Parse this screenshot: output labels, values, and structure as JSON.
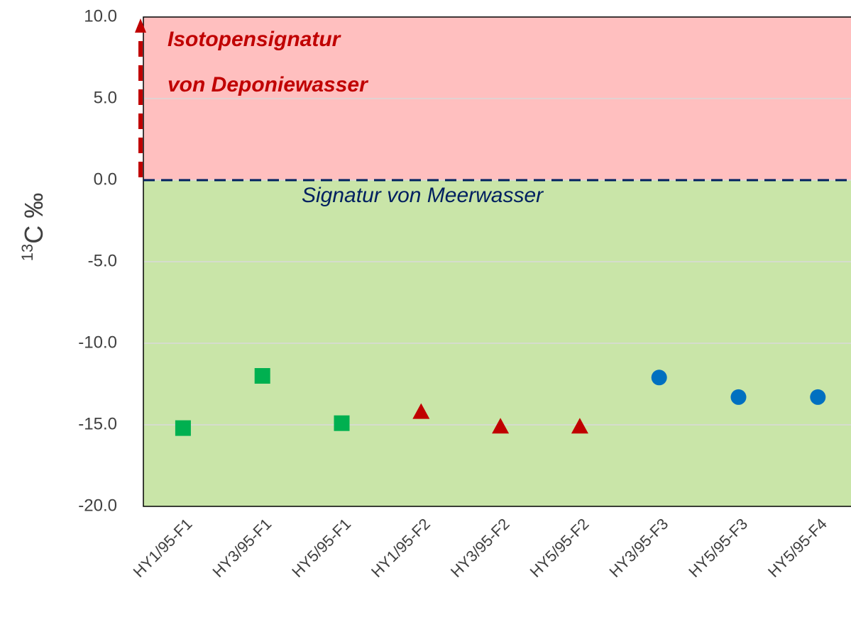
{
  "chart_data": {
    "type": "scatter",
    "categories": [
      "HY1/95-F1",
      "HY3/95-F1",
      "HY5/95-F1",
      "HY1/95-F2",
      "HY3/95-F2",
      "HY5/95-F2",
      "HY3/95-F3",
      "HY5/95-F3",
      "HY5/95-F4"
    ],
    "series": [
      {
        "color": "#00b050",
        "marker": "square",
        "values": [
          -15.2,
          -12.0,
          -14.9,
          null,
          null,
          null,
          null,
          null,
          null
        ]
      },
      {
        "color": "#c00000",
        "marker": "triangle",
        "values": [
          null,
          null,
          null,
          -14.2,
          -15.1,
          -15.1,
          null,
          null,
          null
        ]
      },
      {
        "color": "#0070c0",
        "marker": "circle",
        "values": [
          null,
          null,
          null,
          null,
          null,
          null,
          -12.1,
          -13.3,
          -13.3
        ]
      }
    ],
    "ylim": [
      -20,
      10
    ],
    "yticks": [
      {
        "value": -20,
        "label": "-20.0"
      },
      {
        "value": -15,
        "label": "-15.0"
      },
      {
        "value": -10,
        "label": "-10.0"
      },
      {
        "value": -5,
        "label": "-5.0"
      },
      {
        "value": 0,
        "label": "0.0"
      },
      {
        "value": 5,
        "label": "5.0"
      },
      {
        "value": 10,
        "label": "10.0"
      }
    ],
    "grid": true,
    "y_label_superscript": "13",
    "y_label": "C ‰",
    "regions": [
      {
        "from": 0,
        "to": 10,
        "color": "#ffbfbf"
      },
      {
        "from": -20,
        "to": 0,
        "color": "#c9e5a8"
      }
    ],
    "reference_line": 0,
    "annotations": [
      "Isotopensignatur",
      "von Deponiewasser",
      "Signatur von Meerwasser"
    ]
  }
}
